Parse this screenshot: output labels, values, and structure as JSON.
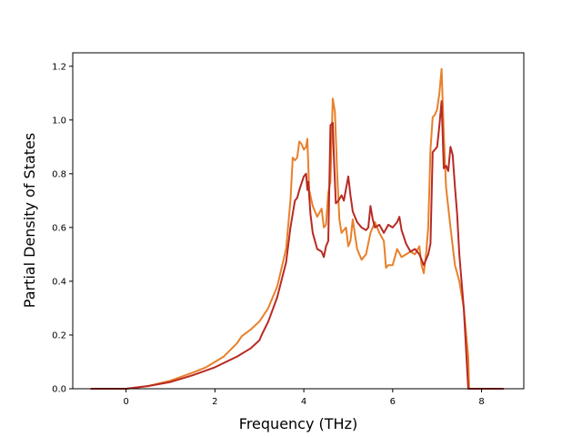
{
  "chart_data": {
    "type": "line",
    "title": "",
    "xlabel": "Frequency (THz)",
    "ylabel": "Partial Density of States",
    "xlim": [
      -1.2,
      8.95
    ],
    "ylim": [
      0,
      1.25
    ],
    "xticks": [
      0,
      2,
      4,
      6,
      8
    ],
    "yticks": [
      0.0,
      0.2,
      0.4,
      0.6,
      0.8,
      1.0,
      1.2
    ],
    "ytick_labels": [
      "0.0",
      "0.2",
      "0.4",
      "0.6",
      "0.8",
      "1.0",
      "1.2"
    ],
    "grid": false,
    "legend": "none",
    "series": [
      {
        "color": "#e8802a",
        "x": [
          -0.8,
          0.0,
          0.5,
          1.0,
          1.5,
          1.8,
          2.0,
          2.2,
          2.5,
          2.6,
          2.8,
          3.0,
          3.2,
          3.4,
          3.6,
          3.7,
          3.75,
          3.8,
          3.85,
          3.9,
          3.95,
          4.0,
          4.05,
          4.08,
          4.12,
          4.2,
          4.3,
          4.4,
          4.45,
          4.5,
          4.55,
          4.6,
          4.65,
          4.7,
          4.75,
          4.8,
          4.85,
          4.95,
          5.0,
          5.05,
          5.1,
          5.2,
          5.3,
          5.4,
          5.5,
          5.55,
          5.6,
          5.7,
          5.8,
          5.85,
          5.9,
          6.0,
          6.1,
          6.2,
          6.3,
          6.4,
          6.5,
          6.6,
          6.65,
          6.7,
          6.75,
          6.8,
          6.85,
          6.9,
          6.95,
          7.0,
          7.05,
          7.1,
          7.15,
          7.2,
          7.3,
          7.4,
          7.5,
          7.6,
          7.7,
          7.72,
          7.8,
          8.0,
          8.5
        ],
        "y": [
          0.0,
          0.0,
          0.01,
          0.03,
          0.06,
          0.08,
          0.1,
          0.12,
          0.17,
          0.195,
          0.22,
          0.25,
          0.3,
          0.38,
          0.52,
          0.7,
          0.86,
          0.85,
          0.86,
          0.92,
          0.91,
          0.89,
          0.9,
          0.93,
          0.74,
          0.68,
          0.64,
          0.67,
          0.6,
          0.61,
          0.73,
          0.77,
          1.08,
          1.03,
          0.8,
          0.63,
          0.58,
          0.6,
          0.53,
          0.55,
          0.63,
          0.52,
          0.48,
          0.5,
          0.58,
          0.6,
          0.62,
          0.58,
          0.55,
          0.45,
          0.46,
          0.46,
          0.52,
          0.49,
          0.5,
          0.51,
          0.5,
          0.53,
          0.46,
          0.43,
          0.5,
          0.6,
          0.89,
          1.01,
          1.02,
          1.04,
          1.1,
          1.19,
          0.95,
          0.75,
          0.6,
          0.46,
          0.4,
          0.3,
          0.12,
          0.0,
          0.0,
          0.0,
          0.0
        ]
      },
      {
        "color": "#b82a24",
        "x": [
          -0.8,
          0.0,
          0.5,
          1.0,
          1.5,
          2.0,
          2.5,
          2.8,
          3.0,
          3.05,
          3.2,
          3.4,
          3.6,
          3.7,
          3.8,
          3.85,
          3.9,
          4.0,
          4.05,
          4.08,
          4.1,
          4.15,
          4.2,
          4.3,
          4.4,
          4.45,
          4.5,
          4.55,
          4.6,
          4.65,
          4.68,
          4.72,
          4.78,
          4.85,
          4.9,
          5.0,
          5.05,
          5.1,
          5.2,
          5.3,
          5.4,
          5.45,
          5.5,
          5.55,
          5.6,
          5.7,
          5.8,
          5.9,
          6.0,
          6.1,
          6.15,
          6.2,
          6.3,
          6.4,
          6.5,
          6.6,
          6.7,
          6.8,
          6.85,
          6.9,
          6.95,
          7.0,
          7.05,
          7.1,
          7.15,
          7.2,
          7.25,
          7.3,
          7.35,
          7.4,
          7.45,
          7.5,
          7.6,
          7.7,
          7.75,
          7.8,
          8.0,
          8.5
        ],
        "y": [
          0.0,
          0.0,
          0.01,
          0.025,
          0.05,
          0.08,
          0.12,
          0.15,
          0.18,
          0.2,
          0.25,
          0.34,
          0.47,
          0.6,
          0.7,
          0.71,
          0.74,
          0.79,
          0.8,
          0.74,
          0.77,
          0.65,
          0.58,
          0.52,
          0.51,
          0.49,
          0.53,
          0.55,
          0.98,
          0.99,
          0.85,
          0.69,
          0.7,
          0.72,
          0.7,
          0.79,
          0.72,
          0.66,
          0.62,
          0.6,
          0.59,
          0.6,
          0.68,
          0.63,
          0.6,
          0.61,
          0.58,
          0.61,
          0.6,
          0.62,
          0.64,
          0.59,
          0.54,
          0.51,
          0.52,
          0.5,
          0.46,
          0.5,
          0.54,
          0.88,
          0.89,
          0.9,
          0.98,
          1.07,
          0.82,
          0.83,
          0.81,
          0.9,
          0.87,
          0.75,
          0.65,
          0.5,
          0.3,
          0.0,
          0.0,
          0.0,
          0.0,
          0.0
        ]
      }
    ]
  }
}
